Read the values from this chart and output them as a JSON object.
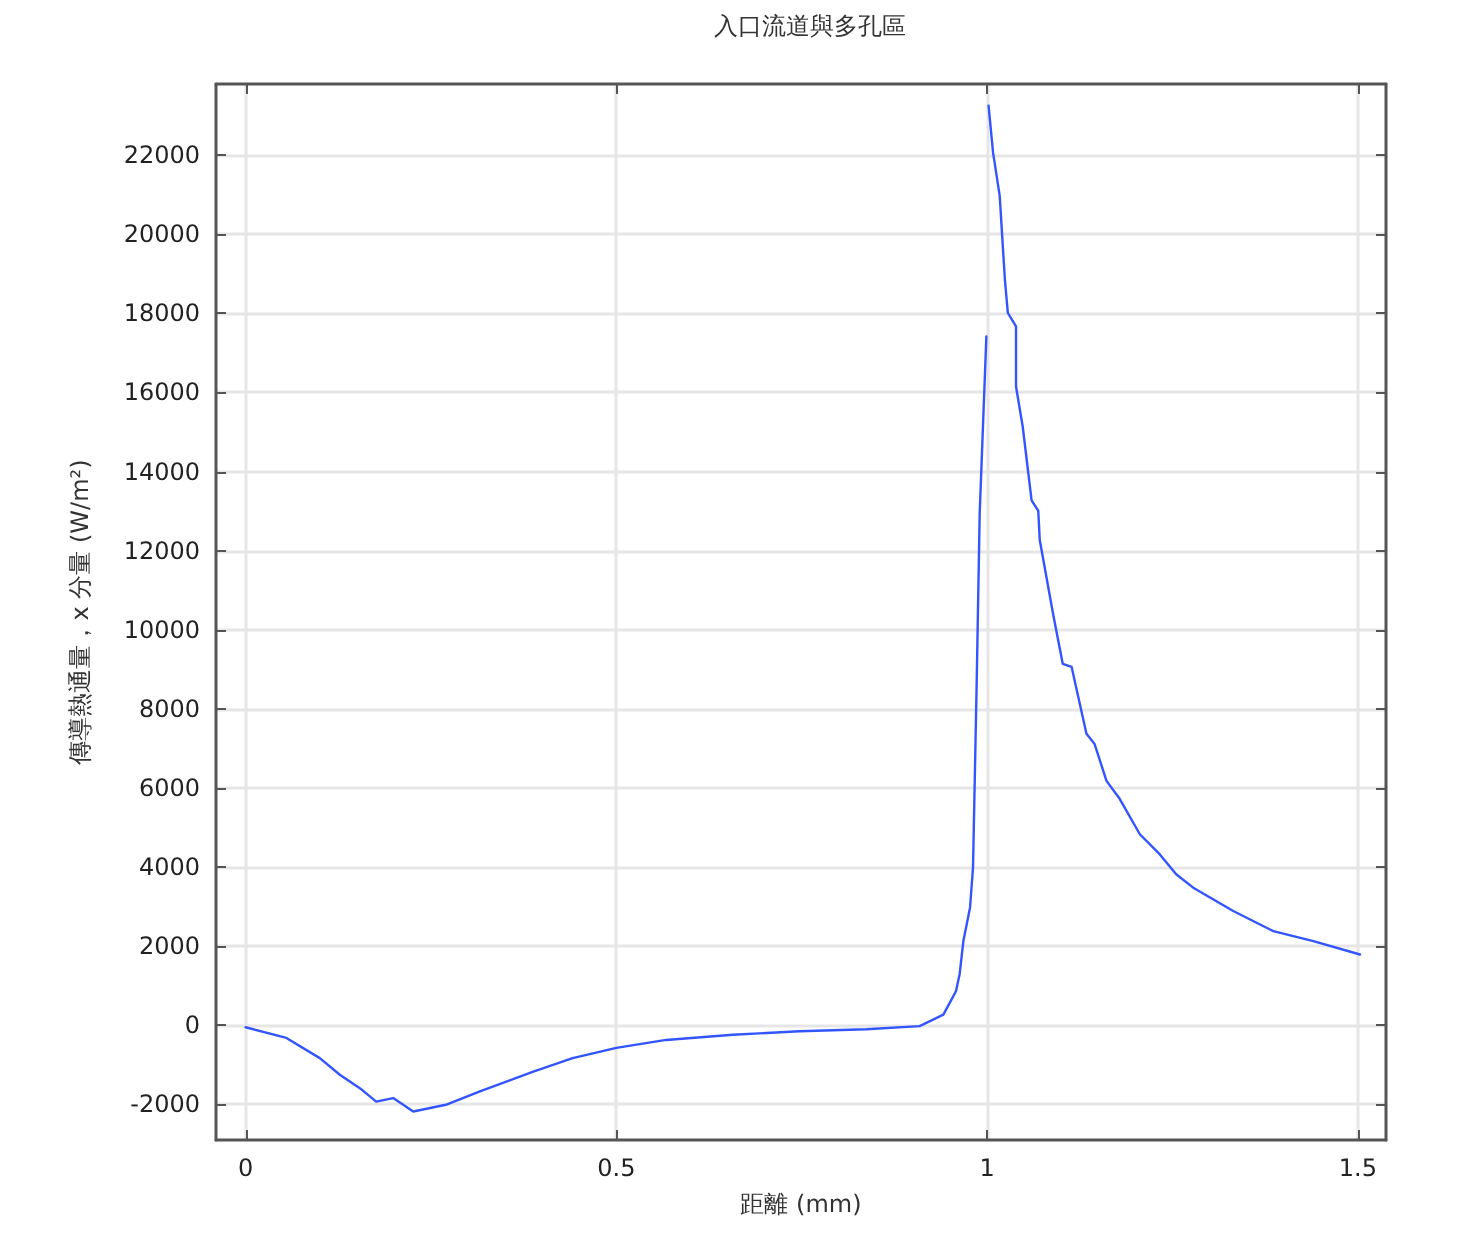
{
  "chart_data": {
    "type": "line",
    "title": "入口流道與多孔區",
    "xlabel": "距離 (mm)",
    "ylabel": "傳導熱通量，x 分量 (W/m²)",
    "xlim": [
      -0.04,
      1.538
    ],
    "xticks": [
      0,
      0.5,
      1,
      1.5
    ],
    "ylim": [
      -2900,
      23800
    ],
    "yticks": [
      -2000,
      0,
      2000,
      4000,
      6000,
      8000,
      10000,
      12000,
      14000,
      16000,
      18000,
      20000,
      22000
    ],
    "grid": true,
    "line_style": "solid",
    "series": [
      {
        "color": "#3355ff",
        "x": [
          0,
          0.055,
          0.1,
          0.127,
          0.154,
          0.176,
          0.199,
          0.226,
          0.27,
          0.316,
          0.388,
          0.441,
          0.5,
          0.567,
          0.657,
          0.747,
          0.837,
          0.909,
          0.941,
          0.958,
          0.963,
          0.968,
          0.977,
          0.981,
          0.986,
          0.99,
          0.999
        ],
        "values": [
          -50,
          -320,
          -830,
          -1250,
          -1590,
          -1930,
          -1840,
          -2180,
          -2010,
          -1670,
          -1170,
          -830,
          -570,
          -370,
          -240,
          -150,
          -100,
          -20,
          270,
          860,
          1300,
          2130,
          2980,
          3990,
          8720,
          12940,
          17420
        ]
      },
      {
        "color": "#3355ff",
        "x": [
          1.002,
          1.008,
          1.017,
          1.024,
          1.028,
          1.039,
          1.039,
          1.048,
          1.06,
          1.069,
          1.071,
          1.089,
          1.102,
          1.114,
          1.134,
          1.145,
          1.161,
          1.179,
          1.206,
          1.233,
          1.255,
          1.278,
          1.332,
          1.386,
          1.44,
          1.503
        ],
        "values": [
          23250,
          22070,
          20970,
          18850,
          18010,
          17670,
          16150,
          15140,
          13270,
          13010,
          12270,
          10400,
          9140,
          9060,
          7370,
          7110,
          6180,
          5720,
          4830,
          4320,
          3820,
          3480,
          2890,
          2380,
          2130,
          1790
        ]
      }
    ]
  }
}
